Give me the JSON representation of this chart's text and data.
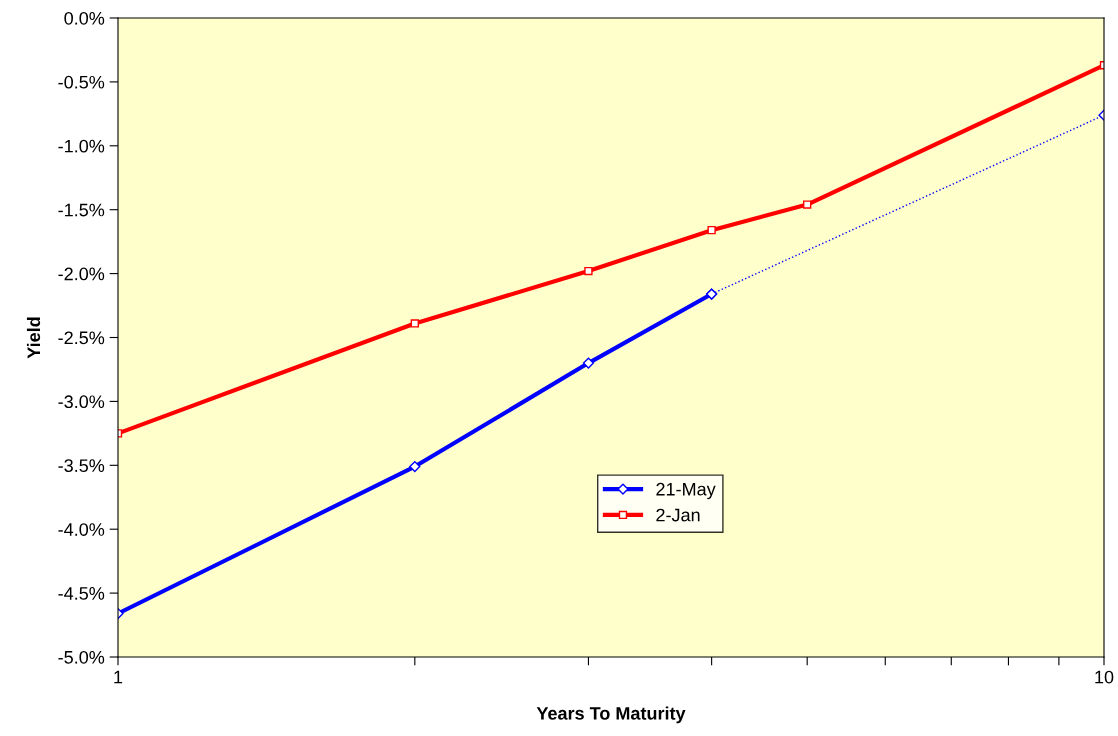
{
  "chart_data": {
    "type": "line",
    "xlabel": "Years To Maturity",
    "ylabel": "Yield",
    "log": "x",
    "xlim": [
      1,
      10
    ],
    "xticks": [
      1,
      {
        "value": 2,
        "label": null
      },
      {
        "value": 3,
        "label": null
      },
      {
        "value": 4,
        "label": null
      },
      {
        "value": 5,
        "label": null
      },
      {
        "value": 6,
        "label": null
      },
      {
        "value": 7,
        "label": null
      },
      {
        "value": 8,
        "label": null
      },
      {
        "value": 9,
        "label": null
      },
      10
    ],
    "ylim": [
      -5,
      0
    ],
    "yticks": [
      {
        "value": 0,
        "label": "0.0%"
      },
      {
        "value": -0.5,
        "label": "-0.5%"
      },
      {
        "value": -1,
        "label": "-1.0%"
      },
      {
        "value": -1.5,
        "label": "-1.5%"
      },
      {
        "value": -2,
        "label": "-2.0%"
      },
      {
        "value": -2.5,
        "label": "-2.5%"
      },
      {
        "value": -3,
        "label": "-3.0%"
      },
      {
        "value": -3.5,
        "label": "-3.5%"
      },
      {
        "value": -4,
        "label": "-4.0%"
      },
      {
        "value": -4.5,
        "label": "-4.5%"
      },
      {
        "value": -5,
        "label": "-5.0%"
      }
    ],
    "grid": false,
    "legend": "center",
    "series": [
      {
        "name": "21-May",
        "color": "#0000ff",
        "x": [
          1,
          2,
          3,
          4
        ],
        "values": [
          -4.66,
          -3.51,
          -2.7,
          -2.16
        ],
        "marker": "diamond",
        "line_style": "solid"
      },
      {
        "name": "2-Jan",
        "color": "#ff0000",
        "x": [
          1,
          2,
          3,
          4,
          5,
          10
        ],
        "values": [
          -3.25,
          -2.39,
          -1.98,
          -1.66,
          -1.46,
          -0.37
        ],
        "marker": "square",
        "line_style": "solid"
      },
      {
        "color": "#0000ff",
        "x": [
          4,
          10
        ],
        "values": [
          -2.16,
          -0.76
        ],
        "marker": "diamond",
        "line_style": "dotted"
      }
    ]
  }
}
